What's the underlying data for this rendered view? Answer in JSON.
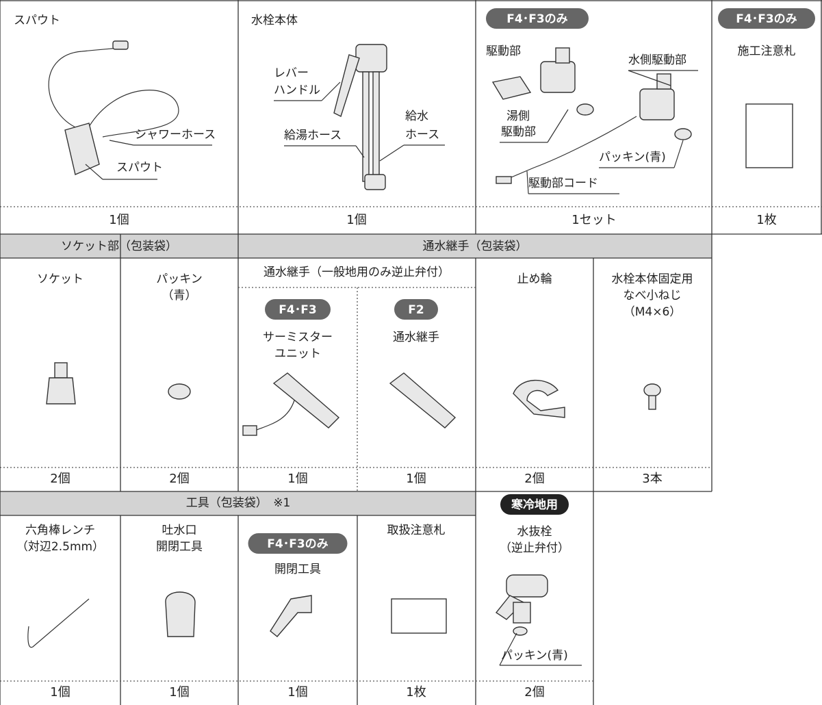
{
  "row1": [
    {
      "label": "スパウト",
      "callouts": [
        "シャワーホース",
        "スパウト"
      ],
      "quantity": "1個"
    },
    {
      "label": "水栓本体",
      "callouts": [
        "レバー",
        "ハンドル",
        "給湯ホース",
        "給水",
        "ホース"
      ],
      "quantity": "1個"
    },
    {
      "badge": "F4･F3のみ",
      "label": "駆動部",
      "callouts": [
        "水側駆動部",
        "湯側",
        "駆動部",
        "パッキン(青)",
        "駆動部コード"
      ],
      "quantity": "1セット"
    },
    {
      "badge": "F4･F3のみ",
      "label": "施工注意札",
      "quantity": "1枚"
    }
  ],
  "row2": {
    "groups": [
      "ソケット部（包装袋）",
      "通水継手（包装袋）"
    ],
    "subgroup": "通水継手（一般地用のみ逆止弁付）",
    "items": [
      {
        "label": [
          "ソケット"
        ],
        "quantity": "2個"
      },
      {
        "label": [
          "パッキン",
          "（青）"
        ],
        "quantity": "2個"
      },
      {
        "badge": "F4･F3",
        "label": [
          "サーミスター",
          "ユニット"
        ],
        "quantity": "1個"
      },
      {
        "badge": "F2",
        "label": [
          "通水継手"
        ],
        "quantity": "1個"
      },
      {
        "label": [
          "止め輪"
        ],
        "quantity": "2個"
      },
      {
        "label": [
          "水栓本体固定用",
          "なべ小ねじ",
          "（M4×6）"
        ],
        "quantity": "3本"
      }
    ]
  },
  "row3": {
    "group": "工具（包装袋）　※1",
    "items": [
      {
        "label": [
          "六角棒レンチ",
          "（対辺2.5mm）"
        ],
        "quantity": "1個"
      },
      {
        "label": [
          "吐水口",
          "開閉工具"
        ],
        "quantity": "1個"
      },
      {
        "badge": "F4･F3のみ",
        "label": [
          "開閉工具"
        ],
        "quantity": "1個"
      },
      {
        "label": [
          "取扱注意札"
        ],
        "quantity": "1枚"
      },
      {
        "badge": "寒冷地用",
        "label": [
          "水抜栓",
          "（逆止弁付）"
        ],
        "callout": "パッキン(青)",
        "quantity": "2個"
      }
    ]
  }
}
